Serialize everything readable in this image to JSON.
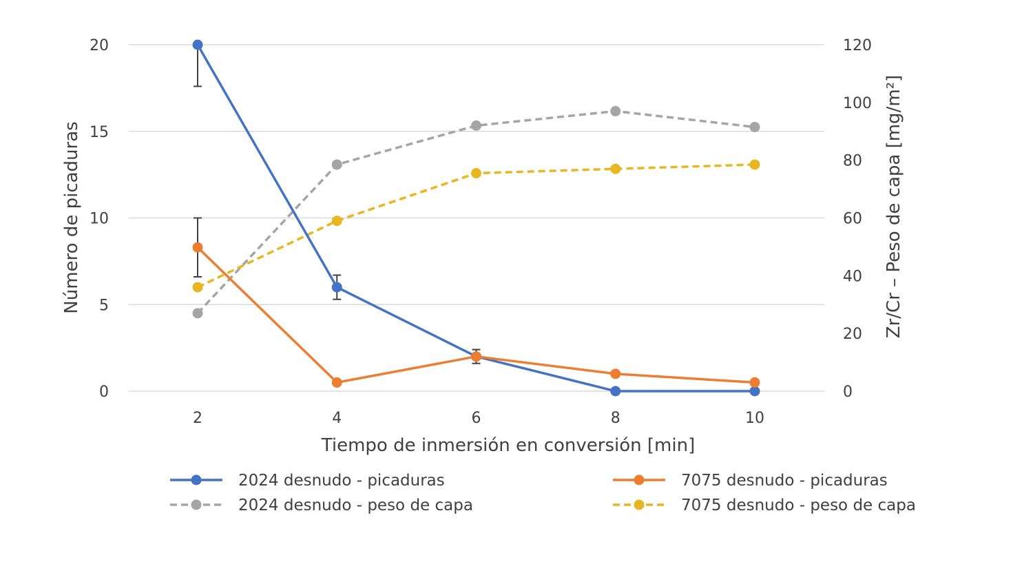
{
  "chart_data": {
    "type": "line",
    "x": [
      2,
      4,
      6,
      8,
      10
    ],
    "xlabel": "Tiempo de inmersión en conversión [min]",
    "ylabel": "Número de picaduras",
    "y2label": "Zr/Cr – Peso de capa [mg/m²]",
    "xticks": [
      "2",
      "4",
      "6",
      "8",
      "10"
    ],
    "yticks": [
      "0",
      "5",
      "10",
      "15",
      "20"
    ],
    "y2ticks": [
      "0",
      "20",
      "40",
      "60",
      "80",
      "100",
      "120"
    ],
    "ylim": [
      0,
      20
    ],
    "y2lim": [
      0,
      120
    ],
    "grid": true,
    "legend_position": "bottom",
    "series": [
      {
        "name": "2024 desnudo - picaduras",
        "axis": "left",
        "color": "#4472c4",
        "dashed": false,
        "values": [
          20,
          6,
          2,
          0,
          0
        ],
        "error_bars": [
          {
            "x": 2,
            "low": 17.6,
            "high": 20
          },
          {
            "x": 4,
            "low": 5.3,
            "high": 6.7
          },
          {
            "x": 6,
            "low": 1.6,
            "high": 2.4
          }
        ]
      },
      {
        "name": "7075 desnudo - picaduras",
        "axis": "left",
        "color": "#ed7d31",
        "dashed": false,
        "values": [
          8.3,
          0.5,
          2,
          1,
          0.5
        ],
        "error_bars": [
          {
            "x": 2,
            "low": 6.6,
            "high": 10
          }
        ]
      },
      {
        "name": "2024 desnudo - peso de capa",
        "axis": "right",
        "color": "#a5a5a5",
        "dashed": true,
        "values": [
          27,
          78.5,
          92,
          97,
          91.5
        ]
      },
      {
        "name": "7075 desnudo - peso de capa",
        "axis": "right",
        "color": "#e8b623",
        "dashed": true,
        "values": [
          36,
          59,
          75.5,
          77,
          78.5
        ]
      }
    ]
  }
}
